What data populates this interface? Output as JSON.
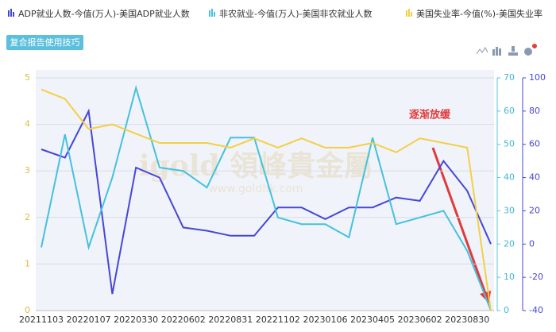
{
  "button": "复合报告使用技巧",
  "chart_data": {
    "type": "line",
    "categories": [
      "20211103",
      null,
      "20220107",
      null,
      "20220330",
      null,
      "20220602",
      null,
      "20220831",
      null,
      "20221102",
      null,
      "20230106",
      null,
      "20230405",
      null,
      "20230602",
      null,
      "20230830",
      null
    ],
    "series": [
      {
        "name": "ADP就业人数-今值(万人)-美国ADP就业人数",
        "color": "#4646d8",
        "axis": "y3",
        "values": [
          57,
          52,
          80,
          -30,
          46,
          40,
          10,
          8,
          5,
          5,
          22,
          22,
          15,
          22,
          22,
          28,
          26,
          50,
          32,
          0
        ]
      },
      {
        "name": "非农就业-今值(万人)-美国非农就业人数",
        "color": "#44c1de",
        "axis": "y2",
        "values": [
          19,
          53,
          19,
          40,
          67,
          43,
          42,
          37,
          52,
          52,
          28,
          26,
          26,
          22,
          52,
          26,
          28,
          30,
          18,
          0
        ]
      },
      {
        "name": "美国失业率-今值(%)-美国失业率",
        "color": "#f3cf45",
        "axis": "y",
        "values": [
          4.75,
          4.55,
          3.9,
          4.0,
          3.8,
          3.6,
          3.6,
          3.6,
          3.5,
          3.7,
          3.5,
          3.7,
          3.5,
          3.5,
          3.6,
          3.4,
          3.7,
          3.6,
          3.5,
          0
        ]
      }
    ],
    "ylim": [
      0,
      5
    ],
    "yticks": [
      0,
      1,
      2,
      3,
      4,
      5
    ],
    "y2lim": [
      0,
      70
    ],
    "y2ticks": [
      0,
      10,
      20,
      30,
      40,
      50,
      60,
      70
    ],
    "y3lim": [
      -40,
      100
    ],
    "y3ticks": [
      -40,
      -20,
      0,
      20,
      40,
      60,
      80,
      100
    ],
    "grid": true,
    "annotation": "逐渐放缓",
    "watermark": "igold 領峰貴金屬",
    "watermark_url": "www.goldhk.com"
  }
}
